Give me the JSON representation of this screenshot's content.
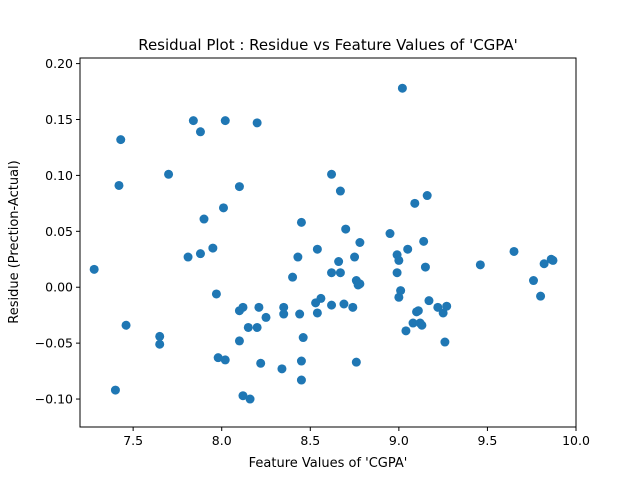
{
  "chart_data": {
    "type": "scatter",
    "title": "Residual Plot : Residue vs Feature Values of 'CGPA'",
    "xlabel": "Feature Values of 'CGPA'",
    "ylabel": "Residue (Prection-Actual)",
    "xlim": [
      7.2,
      10.0
    ],
    "ylim": [
      -0.125,
      0.205
    ],
    "xticks": [
      7.5,
      8.0,
      8.5,
      9.0,
      9.5,
      10.0
    ],
    "xtick_labels": [
      "7.5",
      "8.0",
      "8.5",
      "9.0",
      "9.5",
      "10.0"
    ],
    "yticks": [
      -0.1,
      -0.05,
      0.0,
      0.05,
      0.1,
      0.15,
      0.2
    ],
    "ytick_labels": [
      "−0.10",
      "−0.05",
      "0.00",
      "0.05",
      "0.10",
      "0.15",
      "0.20"
    ],
    "grid": false,
    "marker_color": "#1f77b4",
    "points": [
      [
        7.28,
        0.016
      ],
      [
        7.4,
        -0.092
      ],
      [
        7.42,
        0.091
      ],
      [
        7.43,
        0.132
      ],
      [
        7.46,
        -0.034
      ],
      [
        7.65,
        -0.044
      ],
      [
        7.65,
        -0.051
      ],
      [
        7.7,
        0.101
      ],
      [
        7.81,
        0.027
      ],
      [
        7.84,
        0.149
      ],
      [
        7.88,
        0.139
      ],
      [
        7.88,
        0.03
      ],
      [
        7.9,
        0.061
      ],
      [
        7.95,
        0.035
      ],
      [
        7.97,
        -0.006
      ],
      [
        7.98,
        -0.063
      ],
      [
        8.01,
        0.071
      ],
      [
        8.02,
        0.149
      ],
      [
        8.02,
        -0.065
      ],
      [
        8.1,
        0.09
      ],
      [
        8.1,
        -0.048
      ],
      [
        8.1,
        -0.021
      ],
      [
        8.12,
        -0.018
      ],
      [
        8.12,
        -0.097
      ],
      [
        8.15,
        -0.036
      ],
      [
        8.16,
        -0.1
      ],
      [
        8.2,
        0.147
      ],
      [
        8.2,
        -0.036
      ],
      [
        8.21,
        -0.018
      ],
      [
        8.22,
        -0.068
      ],
      [
        8.25,
        -0.027
      ],
      [
        8.34,
        -0.073
      ],
      [
        8.35,
        -0.018
      ],
      [
        8.35,
        -0.024
      ],
      [
        8.4,
        0.009
      ],
      [
        8.43,
        0.027
      ],
      [
        8.44,
        -0.024
      ],
      [
        8.45,
        0.058
      ],
      [
        8.45,
        -0.066
      ],
      [
        8.45,
        -0.083
      ],
      [
        8.46,
        -0.045
      ],
      [
        8.53,
        -0.014
      ],
      [
        8.54,
        0.034
      ],
      [
        8.54,
        -0.023
      ],
      [
        8.56,
        -0.01
      ],
      [
        8.62,
        0.101
      ],
      [
        8.62,
        0.013
      ],
      [
        8.62,
        -0.016
      ],
      [
        8.66,
        0.023
      ],
      [
        8.67,
        0.013
      ],
      [
        8.67,
        0.086
      ],
      [
        8.69,
        -0.015
      ],
      [
        8.7,
        0.052
      ],
      [
        8.74,
        -0.018
      ],
      [
        8.75,
        0.027
      ],
      [
        8.76,
        0.006
      ],
      [
        8.76,
        -0.067
      ],
      [
        8.77,
        0.002
      ],
      [
        8.78,
        0.003
      ],
      [
        8.78,
        0.04
      ],
      [
        8.95,
        0.048
      ],
      [
        8.99,
        0.029
      ],
      [
        8.99,
        0.013
      ],
      [
        9.0,
        0.024
      ],
      [
        9.0,
        -0.009
      ],
      [
        9.01,
        -0.003
      ],
      [
        9.02,
        0.178
      ],
      [
        9.04,
        -0.039
      ],
      [
        9.05,
        0.034
      ],
      [
        9.08,
        -0.032
      ],
      [
        9.09,
        0.075
      ],
      [
        9.1,
        -0.022
      ],
      [
        9.11,
        -0.021
      ],
      [
        9.12,
        -0.032
      ],
      [
        9.13,
        -0.034
      ],
      [
        9.14,
        0.041
      ],
      [
        9.15,
        0.018
      ],
      [
        9.16,
        0.082
      ],
      [
        9.17,
        -0.012
      ],
      [
        9.22,
        -0.018
      ],
      [
        9.25,
        -0.023
      ],
      [
        9.26,
        -0.049
      ],
      [
        9.27,
        -0.017
      ],
      [
        9.46,
        0.02
      ],
      [
        9.65,
        0.032
      ],
      [
        9.76,
        0.006
      ],
      [
        9.8,
        -0.008
      ],
      [
        9.82,
        0.021
      ],
      [
        9.86,
        0.025
      ],
      [
        9.87,
        0.024
      ]
    ]
  }
}
